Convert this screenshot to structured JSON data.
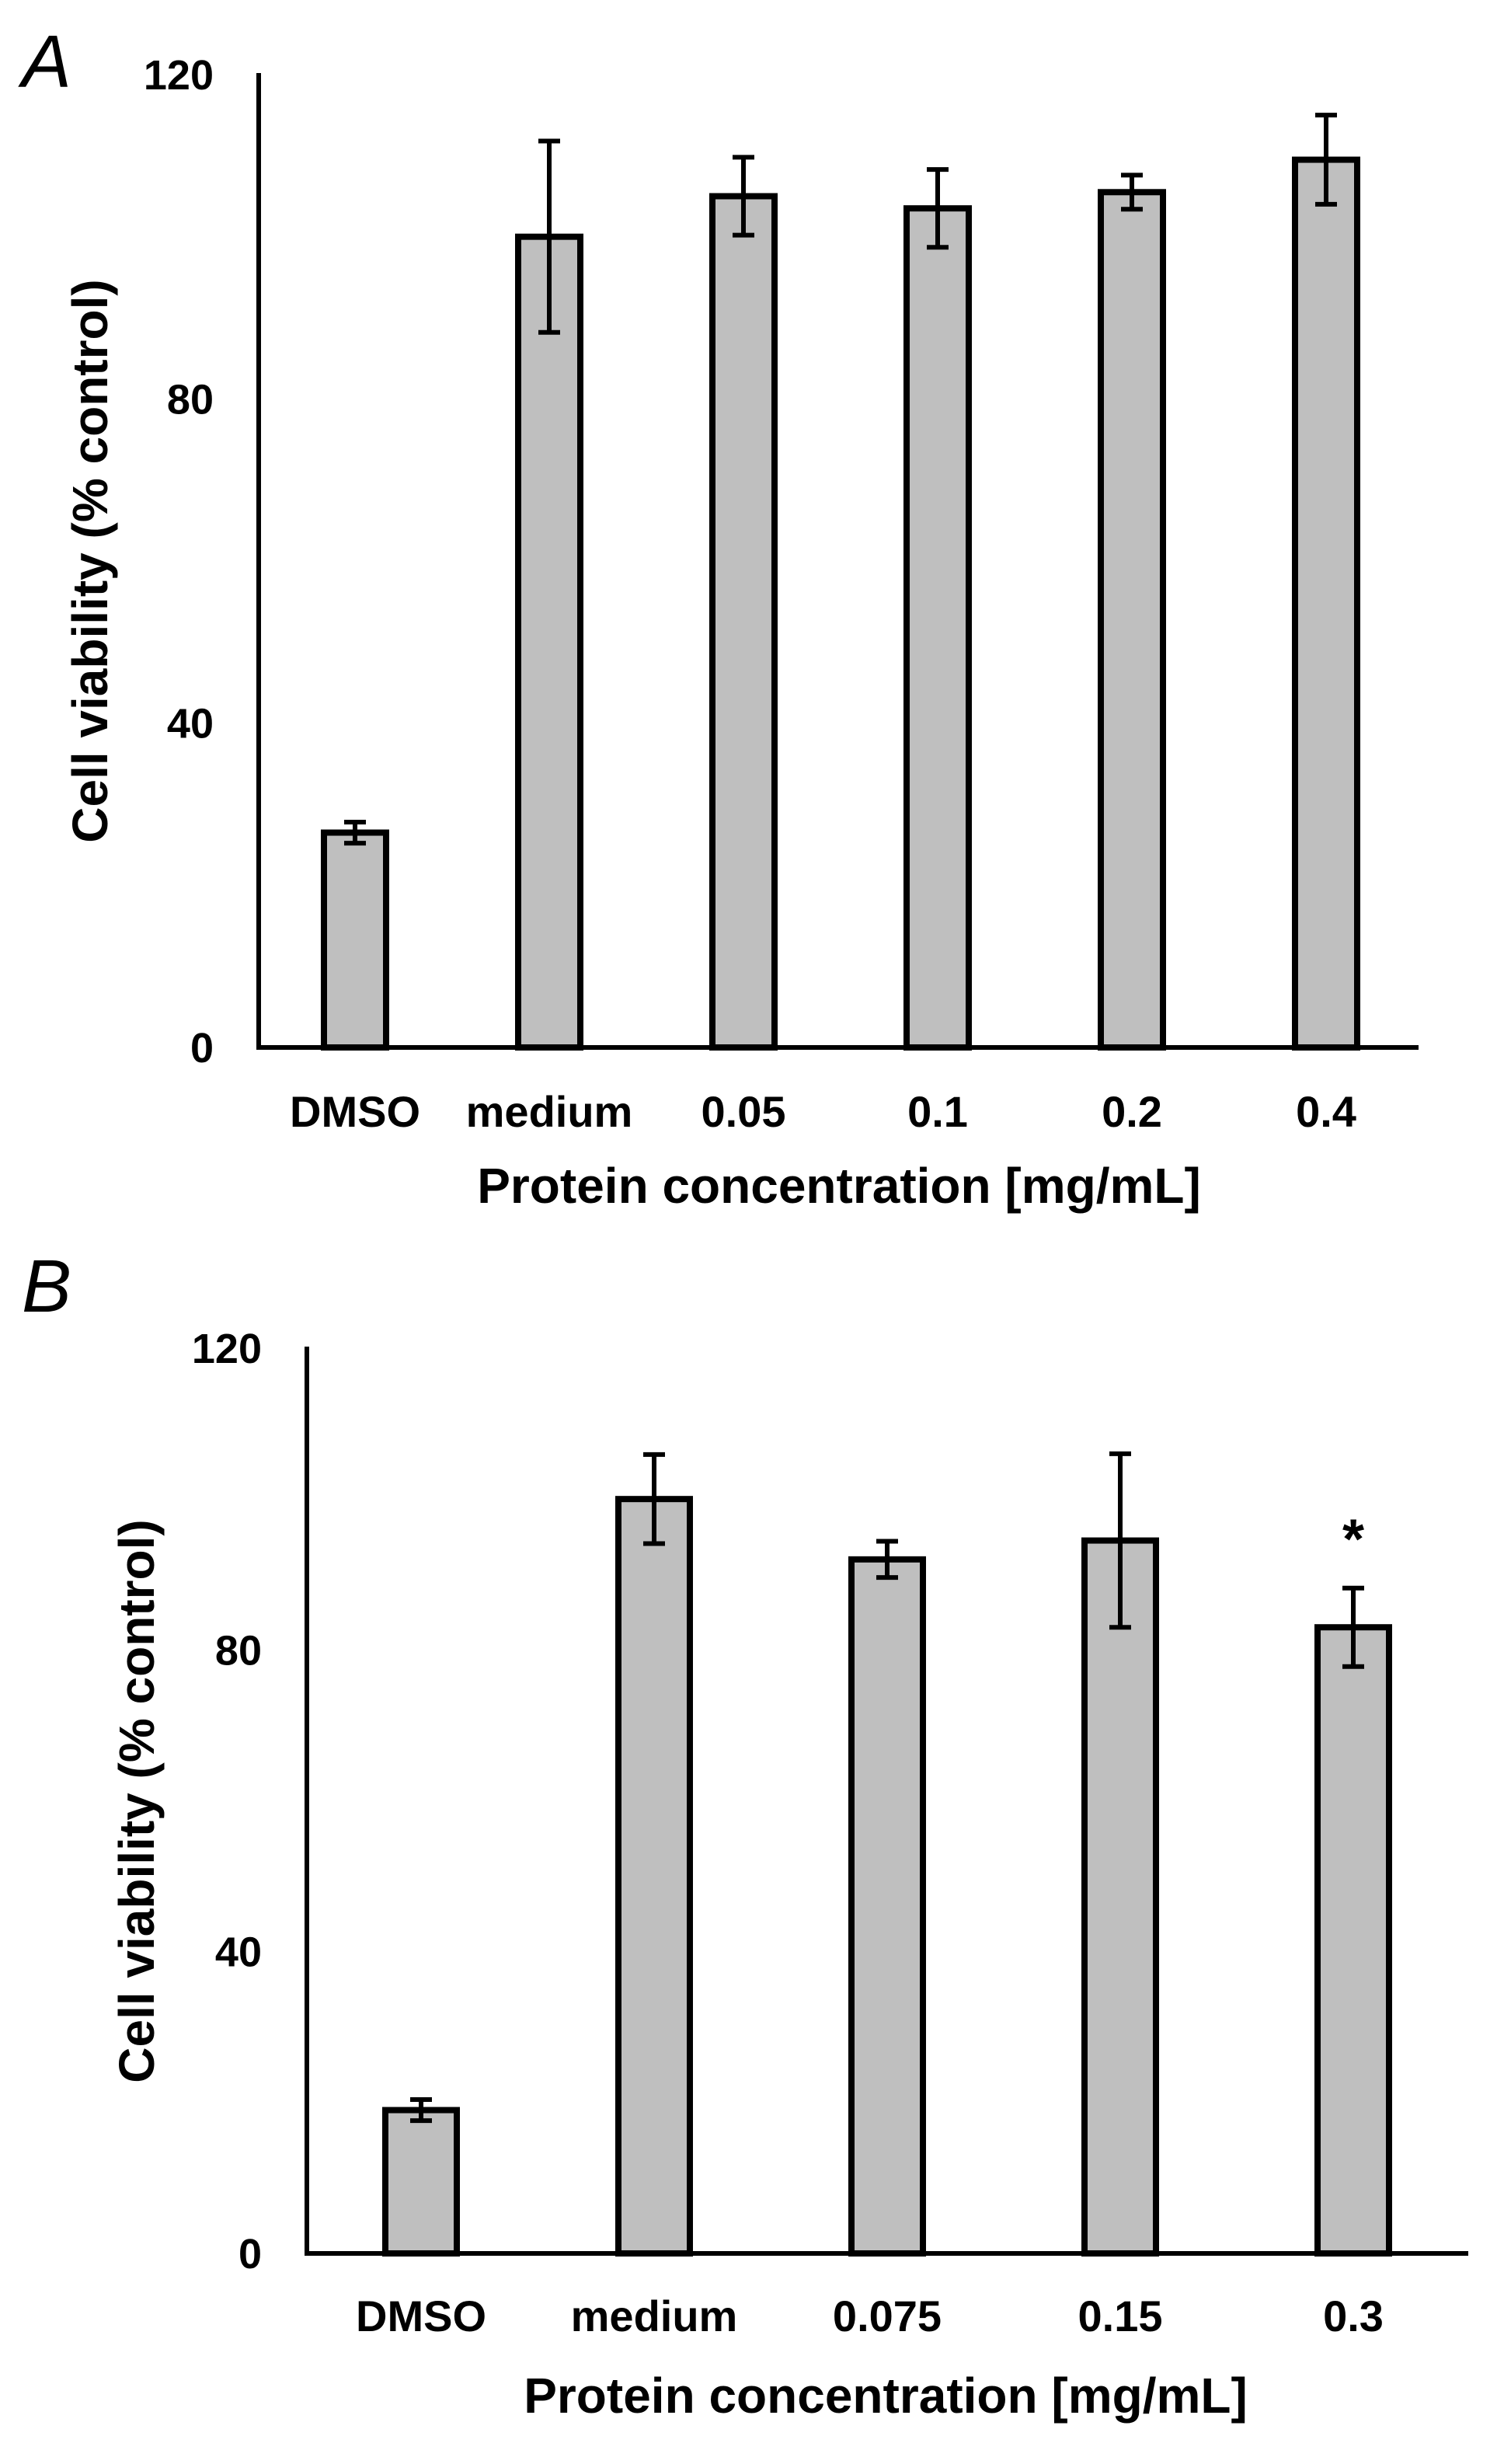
{
  "chart_data": [
    {
      "type": "bar",
      "panel_label": "A",
      "categories": [
        "DMSO",
        "medium",
        "0.05",
        "0.1",
        "0.2",
        "0.4"
      ],
      "values": [
        26.5,
        100,
        105,
        103.5,
        105.5,
        109.5
      ],
      "errors": [
        1.3,
        11.8,
        4.8,
        4.8,
        2.1,
        5.5
      ],
      "annotations": [
        "",
        "",
        "",
        "",
        "",
        ""
      ],
      "xlabel": "Protein concentration [mg/mL]",
      "ylabel": "Cell viability (% control)",
      "ylim": [
        0,
        120
      ],
      "yticks": [
        "0",
        "40",
        "80",
        "120"
      ],
      "grid": false
    },
    {
      "type": "bar",
      "panel_label": "B",
      "categories": [
        "DMSO",
        "medium",
        "0.075",
        "0.15",
        "0.3"
      ],
      "values": [
        19,
        100,
        92,
        94.5,
        83
      ],
      "errors": [
        1.4,
        5.9,
        2.4,
        11.5,
        5.2
      ],
      "annotations": [
        "",
        "",
        "",
        "",
        "*"
      ],
      "xlabel": "Protein concentration [mg/mL]",
      "ylabel": "Cell viability (% control)",
      "ylim": [
        0,
        120
      ],
      "yticks": [
        "0",
        "40",
        "80",
        "120"
      ],
      "grid": false
    }
  ]
}
